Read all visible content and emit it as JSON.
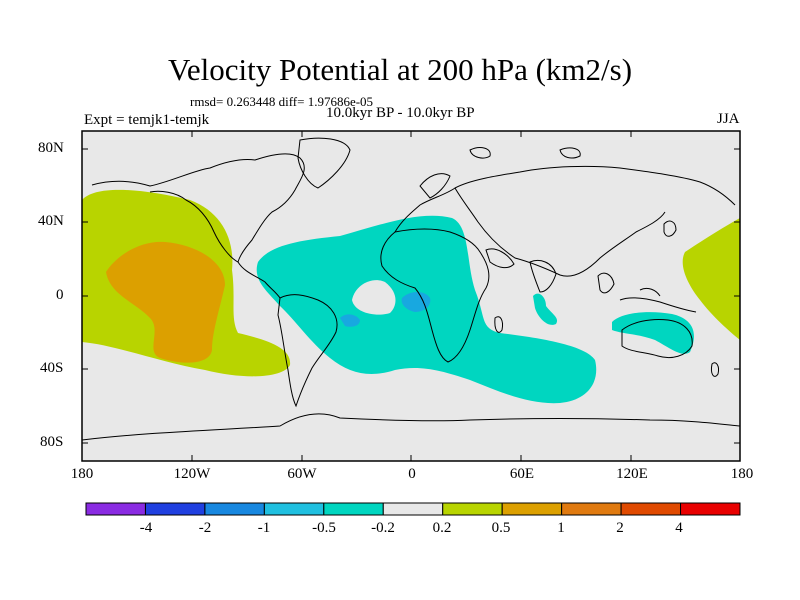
{
  "title": "Velocity Potential at 200 hPa (km2/s)",
  "stats": "rmsd= 0.263448 diff= 1.97686e-05",
  "experiment": "Expt = temjk1-temjk",
  "period": "10.0kyr BP - 10.0kyr BP",
  "season": "JJA",
  "colors": {
    "background": "#e8e8e8",
    "neg_light": "#00d6c0",
    "neg_medium": "#18a8e0",
    "pos_light": "#b8d400",
    "pos_medium": "#dca000"
  },
  "axes": {
    "y_ticks": [
      "80N",
      "40N",
      "0",
      "40S",
      "80S"
    ],
    "x_ticks": [
      "180",
      "120W",
      "60W",
      "0",
      "60E",
      "120E",
      "180"
    ]
  },
  "colorbar": {
    "colors": [
      "#8a2be2",
      "#2040e0",
      "#1888e0",
      "#20c0e0",
      "#00d6c0",
      "#e8e8e8",
      "#b8d400",
      "#dca000",
      "#e07a10",
      "#e04a00",
      "#e80000"
    ],
    "labels": [
      "-4",
      "-2",
      "-1",
      "-0.5",
      "-0.2",
      "0.2",
      "0.5",
      "1",
      "2",
      "4"
    ]
  }
}
